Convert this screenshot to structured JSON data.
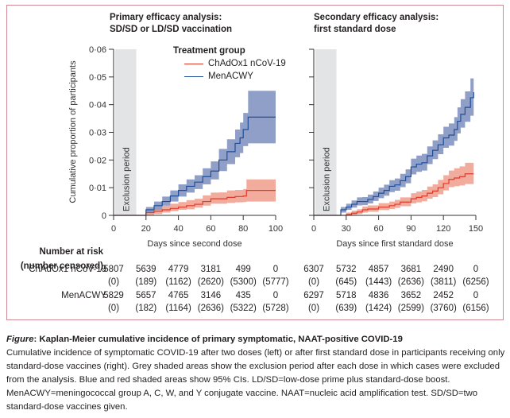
{
  "colors": {
    "chadox_line": "#e03a2a",
    "chadox_band": "#f0a898",
    "menacwy_line": "#1e4e96",
    "menacwy_band": "#8a9ac4",
    "exclusion": "#e3e4e5",
    "frame": "#d08a94"
  },
  "legend": {
    "title": "Treatment group",
    "items": [
      {
        "label": "ChAdOx1 nCoV-19"
      },
      {
        "label": "MenACWY"
      }
    ]
  },
  "risk_table": {
    "heading_line1": "Number at risk",
    "heading_line2": "(number censored)",
    "groups": [
      "ChAdOx1 nCoV-19",
      "MenACWY"
    ]
  },
  "chart_data": [
    {
      "type": "line",
      "title": "Primary efficacy analysis: SD/SD or LD/SD vaccination",
      "title_line1": "Primary efficacy analysis:",
      "title_line2": "SD/SD or LD/SD vaccination",
      "xlabel": "Days since second dose",
      "ylabel": "Cumulative proportion of participants",
      "xlim": [
        0,
        100
      ],
      "ylim": [
        0,
        0.06
      ],
      "xticks": [
        0,
        20,
        40,
        60,
        80,
        100
      ],
      "xtick_labels": [
        "0",
        "20",
        "40",
        "60",
        "80",
        "100"
      ],
      "yticks": [
        0,
        0.01,
        0.02,
        0.03,
        0.04,
        0.05,
        0.06
      ],
      "ytick_labels": [
        "0",
        "0·01",
        "0·02",
        "0·03",
        "0·04",
        "0·05",
        "0·06"
      ],
      "exclusion_period": {
        "label": "Exclusion period",
        "from": 0,
        "to": 14
      },
      "legend_position": "top-right",
      "series": [
        {
          "name": "ChAdOx1 nCoV-19",
          "x": [
            0,
            15,
            20,
            25,
            30,
            35,
            40,
            45,
            50,
            55,
            60,
            65,
            70,
            75,
            80,
            82,
            90,
            100
          ],
          "y": [
            0,
            0,
            0.001,
            0.0015,
            0.002,
            0.0025,
            0.003,
            0.0035,
            0.004,
            0.005,
            0.006,
            0.006,
            0.0065,
            0.0068,
            0.007,
            0.009,
            0.009,
            0.009
          ],
          "lower": [
            0,
            0,
            0.0,
            0.0005,
            0.001,
            0.0015,
            0.002,
            0.0022,
            0.0028,
            0.0035,
            0.0042,
            0.0042,
            0.0045,
            0.0047,
            0.0048,
            0.005,
            0.005,
            0.005
          ],
          "upper": [
            0,
            0,
            0.002,
            0.0028,
            0.0035,
            0.0042,
            0.0048,
            0.0055,
            0.006,
            0.0072,
            0.0082,
            0.0083,
            0.009,
            0.0092,
            0.0095,
            0.013,
            0.013,
            0.013
          ]
        },
        {
          "name": "MenACWY",
          "x": [
            0,
            14,
            20,
            25,
            30,
            35,
            40,
            45,
            50,
            55,
            60,
            65,
            70,
            75,
            78,
            80,
            83,
            90,
            100
          ],
          "y": [
            0,
            0,
            0.002,
            0.0035,
            0.005,
            0.007,
            0.009,
            0.0105,
            0.012,
            0.014,
            0.016,
            0.02,
            0.023,
            0.026,
            0.028,
            0.031,
            0.0355,
            0.0355,
            0.0355
          ],
          "lower": [
            0,
            0,
            0.001,
            0.002,
            0.0035,
            0.005,
            0.0068,
            0.0082,
            0.0095,
            0.0112,
            0.013,
            0.016,
            0.0185,
            0.021,
            0.0225,
            0.025,
            0.026,
            0.026,
            0.026
          ],
          "upper": [
            0,
            0,
            0.003,
            0.005,
            0.0068,
            0.009,
            0.0112,
            0.013,
            0.0145,
            0.017,
            0.0195,
            0.024,
            0.0275,
            0.031,
            0.0335,
            0.037,
            0.045,
            0.045,
            0.045
          ]
        }
      ],
      "number_at_risk": {
        "ChAdOx1 nCoV-19": {
          "at_risk": [
            "5807",
            "5639",
            "4779",
            "3181",
            "499",
            "0"
          ],
          "censored": [
            "(0)",
            "(189)",
            "(1162)",
            "(2620)",
            "(5300)",
            "(5777)"
          ]
        },
        "MenACWY": {
          "at_risk": [
            "5829",
            "5657",
            "4765",
            "3146",
            "435",
            "0"
          ],
          "censored": [
            "(0)",
            "(182)",
            "(1164)",
            "(2636)",
            "(5322)",
            "(5728)"
          ]
        }
      }
    },
    {
      "type": "line",
      "title": "Secondary efficacy analysis: first standard dose",
      "title_line1": "Secondary efficacy analysis:",
      "title_line2": "first standard dose",
      "xlabel": "Days since first standard dose",
      "ylabel": "Cumulative proportion of participants",
      "xlim": [
        0,
        150
      ],
      "ylim": [
        0,
        0.06
      ],
      "xticks": [
        0,
        30,
        60,
        90,
        120,
        150
      ],
      "xtick_labels": [
        "0",
        "30",
        "60",
        "90",
        "120",
        "150"
      ],
      "yticks": [
        0,
        0.01,
        0.02,
        0.03,
        0.04,
        0.05,
        0.06
      ],
      "exclusion_period": {
        "label": "Exclusion period",
        "from": 0,
        "to": 21
      },
      "series": [
        {
          "name": "ChAdOx1 nCoV-19",
          "x": [
            0,
            25,
            30,
            35,
            40,
            45,
            50,
            60,
            70,
            75,
            80,
            90,
            95,
            100,
            105,
            110,
            115,
            120,
            125,
            130,
            135,
            140,
            148
          ],
          "y": [
            0,
            0,
            0.0003,
            0.0008,
            0.0012,
            0.002,
            0.0023,
            0.003,
            0.0035,
            0.004,
            0.0048,
            0.006,
            0.0065,
            0.007,
            0.008,
            0.0088,
            0.01,
            0.0115,
            0.013,
            0.0135,
            0.014,
            0.015,
            0.015
          ],
          "lower": [
            0,
            0,
            0,
            0.0002,
            0.0005,
            0.001,
            0.0013,
            0.0019,
            0.0023,
            0.0027,
            0.0033,
            0.0043,
            0.0047,
            0.0051,
            0.006,
            0.0066,
            0.0076,
            0.009,
            0.0102,
            0.0105,
            0.0108,
            0.0113,
            0.0113
          ],
          "upper": [
            0,
            0,
            0.001,
            0.0017,
            0.0022,
            0.0032,
            0.0036,
            0.0044,
            0.005,
            0.0056,
            0.0065,
            0.008,
            0.0086,
            0.0092,
            0.0104,
            0.0112,
            0.0128,
            0.0145,
            0.0162,
            0.017,
            0.0177,
            0.019,
            0.019
          ]
        },
        {
          "name": "MenACWY",
          "x": [
            0,
            21,
            25,
            30,
            35,
            40,
            45,
            50,
            55,
            60,
            65,
            70,
            75,
            80,
            85,
            90,
            95,
            100,
            105,
            110,
            115,
            120,
            125,
            130,
            133,
            136,
            140,
            143,
            145,
            148
          ],
          "y": [
            0,
            0,
            0.002,
            0.003,
            0.004,
            0.005,
            0.005,
            0.0058,
            0.0068,
            0.008,
            0.009,
            0.0105,
            0.011,
            0.0125,
            0.014,
            0.0175,
            0.0185,
            0.019,
            0.0215,
            0.0235,
            0.0255,
            0.028,
            0.029,
            0.031,
            0.034,
            0.0365,
            0.039,
            0.039,
            0.0425,
            0.0445
          ],
          "lower": [
            0,
            0,
            0.001,
            0.002,
            0.0028,
            0.0036,
            0.0037,
            0.0043,
            0.0052,
            0.0062,
            0.0071,
            0.0084,
            0.0089,
            0.0102,
            0.0116,
            0.0148,
            0.0157,
            0.0162,
            0.0185,
            0.0203,
            0.0221,
            0.0244,
            0.0252,
            0.0269,
            0.0296,
            0.0317,
            0.0338,
            0.0338,
            0.036,
            0.036
          ],
          "upper": [
            0,
            0,
            0.003,
            0.0042,
            0.0054,
            0.0065,
            0.0066,
            0.0075,
            0.0086,
            0.01,
            0.0111,
            0.0127,
            0.0133,
            0.015,
            0.0166,
            0.0205,
            0.0216,
            0.0222,
            0.0249,
            0.0271,
            0.0293,
            0.032,
            0.0332,
            0.0355,
            0.039,
            0.042,
            0.0448,
            0.0448,
            0.0495,
            0.0525
          ]
        }
      ],
      "number_at_risk": {
        "ChAdOx1 nCoV-19": {
          "at_risk": [
            "6307",
            "5732",
            "4857",
            "3681",
            "2490",
            "0"
          ],
          "censored": [
            "(0)",
            "(645)",
            "(1443)",
            "(2636)",
            "(3811)",
            "(6256)"
          ]
        },
        "MenACWY": {
          "at_risk": [
            "6297",
            "5718",
            "4836",
            "3652",
            "2452",
            "0"
          ],
          "censored": [
            "(0)",
            "(639)",
            "(1424)",
            "(2599)",
            "(3760)",
            "(6156)"
          ]
        }
      }
    }
  ],
  "caption": {
    "label": "Figure",
    "title": ": Kaplan-Meier cumulative incidence of primary symptomatic, NAAT-positive COVID-19",
    "body": "Cumulative incidence of symptomatic COVID-19 after two doses (left) or after first standard dose in participants receiving only standard-dose vaccines (right). Grey shaded areas show the exclusion period after each dose in which cases were excluded from the analysis. Blue and red shaded areas show 95% CIs. LD/SD=low-dose prime plus standard-dose boost. MenACWY=meningococcal group A, C, W, and Y conjugate vaccine. NAAT=nucleic acid amplification test. SD/SD=two standard-dose vaccines given."
  }
}
